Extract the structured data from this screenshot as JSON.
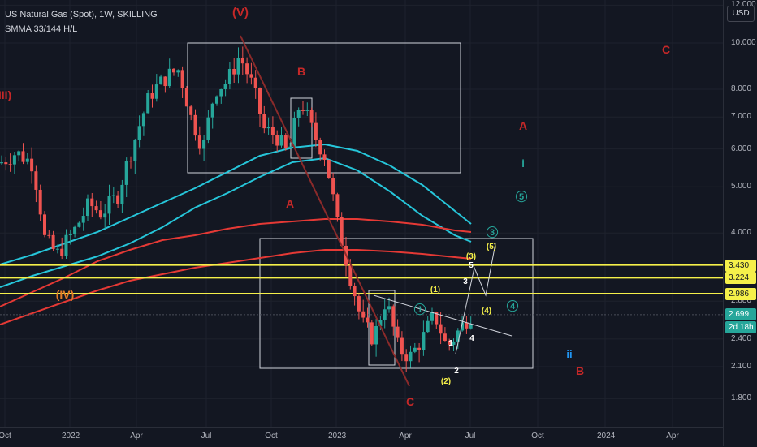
{
  "legend": {
    "symbol_line": "US Natural Gas (Spot), 1W, SKILLING",
    "indicator_line": "SMMA 33/144 H/L"
  },
  "price_axis": {
    "currency": "USD",
    "ticks": [
      "12.000",
      "10.000",
      "8.000",
      "7.000",
      "6.000",
      "5.000",
      "4.000",
      "2.880",
      "2.400",
      "2.100",
      "1.800"
    ],
    "tags": [
      {
        "label": "3.430",
        "bg": "#f5f04a",
        "fg": "#131722"
      },
      {
        "label": "3.224",
        "bg": "#f5f04a",
        "fg": "#131722"
      },
      {
        "label": "2.986",
        "bg": "#f5f04a",
        "fg": "#131722"
      },
      {
        "label": "2.699",
        "bg": "#26a69a",
        "fg": "#ffffff"
      },
      {
        "label": "2d 18h",
        "bg": "#26a69a",
        "fg": "#ffffff"
      }
    ]
  },
  "time_axis": [
    "Oct",
    "2022",
    "Apr",
    "Jul",
    "Oct",
    "2023",
    "Apr",
    "Jul",
    "Oct",
    "2024",
    "Apr"
  ],
  "wave_labels": {
    "V": "(V)",
    "IV": "(IV)",
    "III": "III)",
    "B_red": "B",
    "A_red": "A",
    "C_red": "C",
    "A_far": "A",
    "C_far": "C",
    "B_far": "B",
    "i": "i",
    "ii": "ii",
    "c5": "5",
    "c3": "3",
    "c4": "4",
    "c1": "1",
    "p1": "(1)",
    "p2": "(2)",
    "p3": "(3)",
    "p4": "(4)",
    "p5": "(5)",
    "n1": "1",
    "n2": "2",
    "n3": "3",
    "n4": "4",
    "n5": "5"
  },
  "colors": {
    "background": "#131722",
    "up_candle": "#26a69a",
    "down_candle": "#ef5350",
    "smma_cyan": "#26c6da",
    "smma_red": "#e53935",
    "horizontal_lines": "#f5f04a",
    "wave_red": "#c62828",
    "wave_teal": "#26a69a",
    "wave_yellow": "#f5f04a"
  },
  "chart_data": {
    "type": "candlestick",
    "timeframe": "1W",
    "price_scale": "log",
    "horizontal_levels": [
      3.43,
      3.224,
      2.986
    ],
    "last_price": 2.699
  }
}
